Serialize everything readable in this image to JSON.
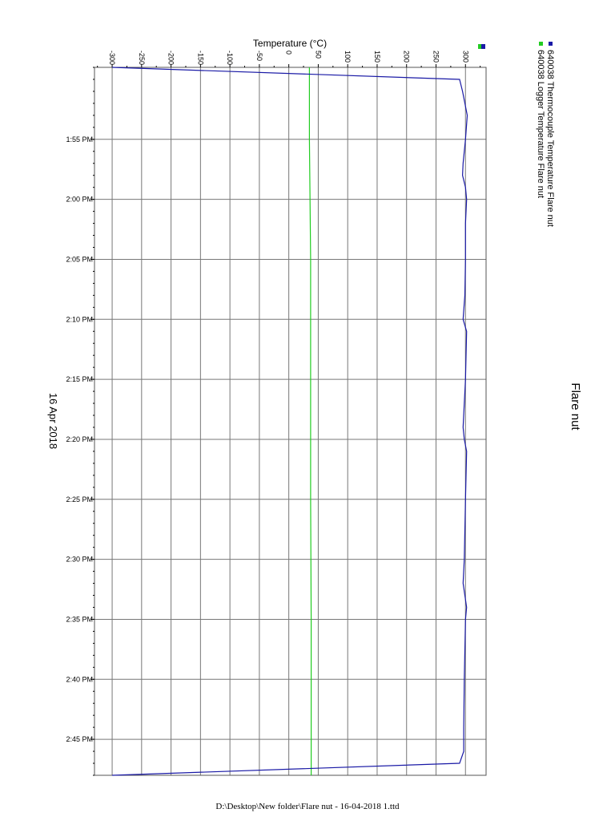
{
  "footer_path": "D:\\Desktop\\New folder\\Flare nut - 16-04-2018 1.ttd",
  "chart_data": {
    "type": "line",
    "orientation": "rotated",
    "title": "Flare nut",
    "date_label": "16 Apr 2018",
    "temperature_axis": {
      "label": "Temperature (°C)",
      "range": [
        -330,
        335
      ],
      "ticks": [
        -300,
        -250,
        -200,
        -150,
        -100,
        -50,
        0,
        50,
        100,
        150,
        200,
        250,
        300
      ],
      "tick_labels": [
        "-300",
        "-250",
        "-200",
        "-150",
        "-100",
        "-50",
        "0",
        "50",
        "100",
        "150",
        "200",
        "250",
        "300"
      ]
    },
    "time_axis": {
      "start": "1:49 PM",
      "end": "2:48 PM",
      "ticks": [
        "1:55 PM",
        "2:00 PM",
        "2:05 PM",
        "2:10 PM",
        "2:15 PM",
        "2:20 PM",
        "2:25 PM",
        "2:30 PM",
        "2:35 PM",
        "2:40 PM",
        "2:45 PM"
      ]
    },
    "grid": true,
    "legend_position": "top-right",
    "series": [
      {
        "name": "640038 Thermocouple Temperature Flare nut",
        "color": "#1a1aa6",
        "points": [
          [
            "1:49 PM",
            -300
          ],
          [
            "1:50 PM",
            290
          ],
          [
            "1:51 PM",
            295
          ],
          [
            "1:53 PM",
            303
          ],
          [
            "1:55 PM",
            300
          ],
          [
            "1:57 PM",
            296
          ],
          [
            "1:58 PM",
            295
          ],
          [
            "1:59 PM",
            300
          ],
          [
            "2:00 PM",
            302
          ],
          [
            "2:02 PM",
            300
          ],
          [
            "2:05 PM",
            300
          ],
          [
            "2:08 PM",
            299
          ],
          [
            "2:10 PM",
            296
          ],
          [
            "2:11 PM",
            302
          ],
          [
            "2:15 PM",
            300
          ],
          [
            "2:19 PM",
            296
          ],
          [
            "2:20 PM",
            298
          ],
          [
            "2:21 PM",
            302
          ],
          [
            "2:25 PM",
            300
          ],
          [
            "2:30 PM",
            298
          ],
          [
            "2:32 PM",
            296
          ],
          [
            "2:34 PM",
            302
          ],
          [
            "2:35 PM",
            300
          ],
          [
            "2:40 PM",
            298
          ],
          [
            "2:44 PM",
            297
          ],
          [
            "2:46 PM",
            297
          ],
          [
            "2:47 PM",
            290
          ],
          [
            "2:48 PM",
            -300
          ]
        ]
      },
      {
        "name": "640038 Logger Temperature Flare nut",
        "color": "#22cc22",
        "points": [
          [
            "1:49 PM",
            35
          ],
          [
            "1:55 PM",
            35
          ],
          [
            "2:05 PM",
            37
          ],
          [
            "2:15 PM",
            37
          ],
          [
            "2:25 PM",
            37
          ],
          [
            "2:35 PM",
            38
          ],
          [
            "2:45 PM",
            38
          ],
          [
            "2:48 PM",
            38
          ]
        ]
      }
    ]
  }
}
